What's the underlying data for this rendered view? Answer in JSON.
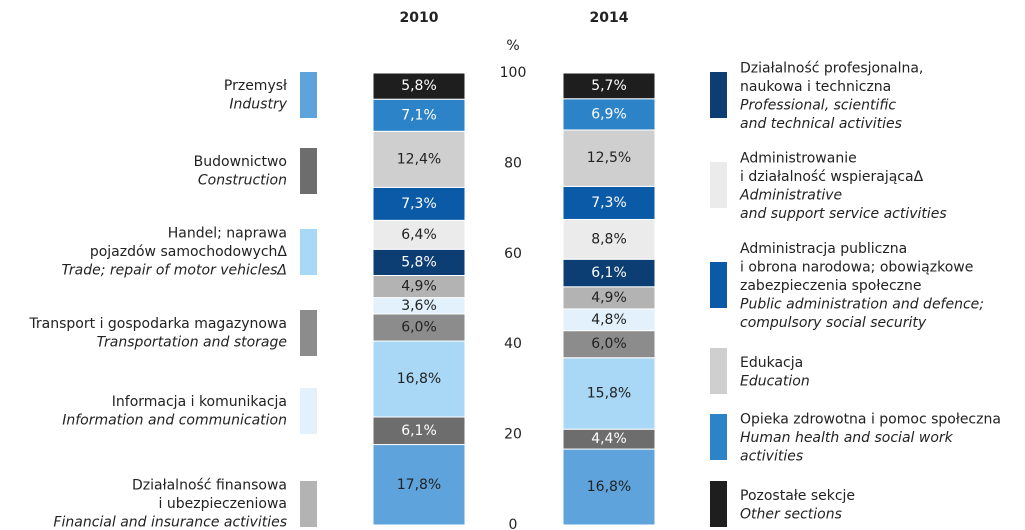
{
  "chart_data": {
    "type": "stacked-bar",
    "categories": [
      "2010",
      "2014"
    ],
    "y_unit": "%",
    "ylim": [
      0,
      100
    ],
    "yticks": [
      0,
      20,
      40,
      60,
      80,
      100
    ],
    "series": [
      {
        "name": [
          "Przemysł"
        ],
        "name_en": [
          "Industry"
        ],
        "color": "#5fa3dc",
        "values": [
          17.8,
          16.8
        ],
        "value_labels": [
          "17,8%",
          "16,8%"
        ]
      },
      {
        "name": [
          "Budownictwo"
        ],
        "name_en": [
          "Construction"
        ],
        "color": "#6d6d6d",
        "values": [
          6.1,
          4.4
        ],
        "value_labels": [
          "6,1%",
          "4,4%"
        ]
      },
      {
        "name": [
          "Handel; naprawa",
          "pojazdów samochodowychΔ"
        ],
        "name_en": [
          "Trade; repair of motor vehiclesΔ"
        ],
        "color": "#a8d8f5",
        "values": [
          16.8,
          15.8
        ],
        "value_labels": [
          "16,8%",
          "15,8%"
        ]
      },
      {
        "name": [
          "Transport i gospodarka magazynowa"
        ],
        "name_en": [
          "Transportation and storage"
        ],
        "color": "#8c8c8c",
        "values": [
          6.0,
          6.0
        ],
        "value_labels": [
          "6,0%",
          "6,0%"
        ]
      },
      {
        "name": [
          "Informacja i komunikacja"
        ],
        "name_en": [
          "Information and communication"
        ],
        "color": "#e2f1fb",
        "values": [
          3.6,
          4.8
        ],
        "value_labels": [
          "3,6%",
          "4,8%"
        ]
      },
      {
        "name": [
          "Działalność finansowa",
          "i ubezpieczeniowa"
        ],
        "name_en": [
          "Financial and insurance activities"
        ],
        "color": "#b3b3b3",
        "values": [
          4.9,
          4.9
        ],
        "value_labels": [
          "4,9%",
          "4,9%"
        ]
      },
      {
        "name": [
          "Działalność profesjonalna,",
          "naukowa i techniczna"
        ],
        "name_en": [
          "Professional, scientific",
          "and technical activities"
        ],
        "color": "#0d3e73",
        "values": [
          5.8,
          6.1
        ],
        "value_labels": [
          "5,8%",
          "6,1%"
        ]
      },
      {
        "name": [
          "Administrowanie",
          "i działalność wspierającaΔ"
        ],
        "name_en": [
          "Administrative",
          "and support service activities"
        ],
        "color": "#ebebeb",
        "values": [
          6.4,
          8.8
        ],
        "value_labels": [
          "6,4%",
          "8,8%"
        ]
      },
      {
        "name": [
          "Administracja publiczna",
          "i obrona narodowa; obowiązkowe",
          "zabezpieczenia społeczne"
        ],
        "name_en": [
          "Public administration and defence;",
          "compulsory social security"
        ],
        "color": "#0a5aa8",
        "values": [
          7.3,
          7.3
        ],
        "value_labels": [
          "7,3%",
          "7,3%"
        ]
      },
      {
        "name": [
          "Edukacja"
        ],
        "name_en": [
          "Education"
        ],
        "color": "#cfcfcf",
        "values": [
          12.4,
          12.5
        ],
        "value_labels": [
          "12,4%",
          "12,5%"
        ]
      },
      {
        "name": [
          "Opieka zdrowotna i pomoc społeczna"
        ],
        "name_en": [
          "Human health and social work",
          "activities"
        ],
        "color": "#2d83c8",
        "values": [
          7.1,
          6.9
        ],
        "value_labels": [
          "7,1%",
          "6,9%"
        ]
      },
      {
        "name": [
          "Pozostałe sekcje"
        ],
        "name_en": [
          "Other sections"
        ],
        "color": "#1e1e1e",
        "values": [
          5.8,
          5.7
        ],
        "value_labels": [
          "5,8%",
          "5,7%"
        ]
      }
    ]
  }
}
